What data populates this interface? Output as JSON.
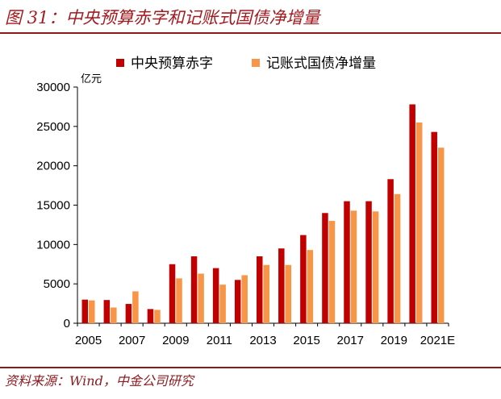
{
  "header": {
    "title": "图 31：中央预算赤字和记账式国债净增量"
  },
  "footer": {
    "source": "资料来源：Wind，中金公司研究"
  },
  "chart_data": {
    "type": "bar",
    "unit_label": "亿元",
    "legend_position": "top",
    "ylim": [
      0,
      30000
    ],
    "yticks": [
      0,
      5000,
      10000,
      15000,
      20000,
      25000,
      30000
    ],
    "categories": [
      "2005",
      "2006",
      "2007",
      "2008",
      "2009",
      "2010",
      "2011",
      "2012",
      "2013",
      "2014",
      "2015",
      "2016",
      "2017",
      "2018",
      "2019",
      "2020",
      "2021E"
    ],
    "x_tick_labels": [
      "2005",
      "",
      "2007",
      "",
      "2009",
      "",
      "2011",
      "",
      "2013",
      "",
      "2015",
      "",
      "2017",
      "",
      "2019",
      "",
      "2021E"
    ],
    "series": [
      {
        "name": "中央预算赤字",
        "color": "#c00000",
        "values": [
          3000,
          2950,
          2450,
          1800,
          7500,
          8500,
          7000,
          5500,
          8500,
          9500,
          11200,
          14000,
          15500,
          15500,
          18300,
          27800,
          24300
        ]
      },
      {
        "name": "记账式国债净增量",
        "color": "#f79646",
        "values": [
          2900,
          2000,
          4050,
          1700,
          5700,
          6300,
          4900,
          6100,
          7400,
          7400,
          9300,
          13000,
          14300,
          14200,
          16400,
          25500,
          22300
        ]
      }
    ],
    "grid": false
  }
}
